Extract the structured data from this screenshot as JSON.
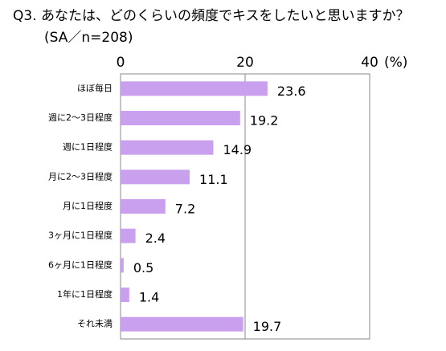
{
  "chart_data": {
    "type": "bar",
    "orientation": "horizontal",
    "title": "Q3. あなたは、どのくらいの頻度でキスをしたいと思いますか？",
    "subtitle": "(SA／n=208)",
    "x_label": "(%)",
    "categories": [
      "ほぼ毎日",
      "週に2～3日程度",
      "週に1日程度",
      "月に2～3日程度",
      "月に1日程度",
      "3ヶ月に1日程度",
      "6ヶ月に1日程度",
      "1年に1日程度",
      "それ未満"
    ],
    "values": [
      23.6,
      19.2,
      14.9,
      11.1,
      7.2,
      2.4,
      0.5,
      1.4,
      19.7
    ],
    "color": "#c9a0ee",
    "xlim": [
      0,
      40
    ],
    "xticks": [
      0,
      20,
      40
    ],
    "grid": true
  }
}
